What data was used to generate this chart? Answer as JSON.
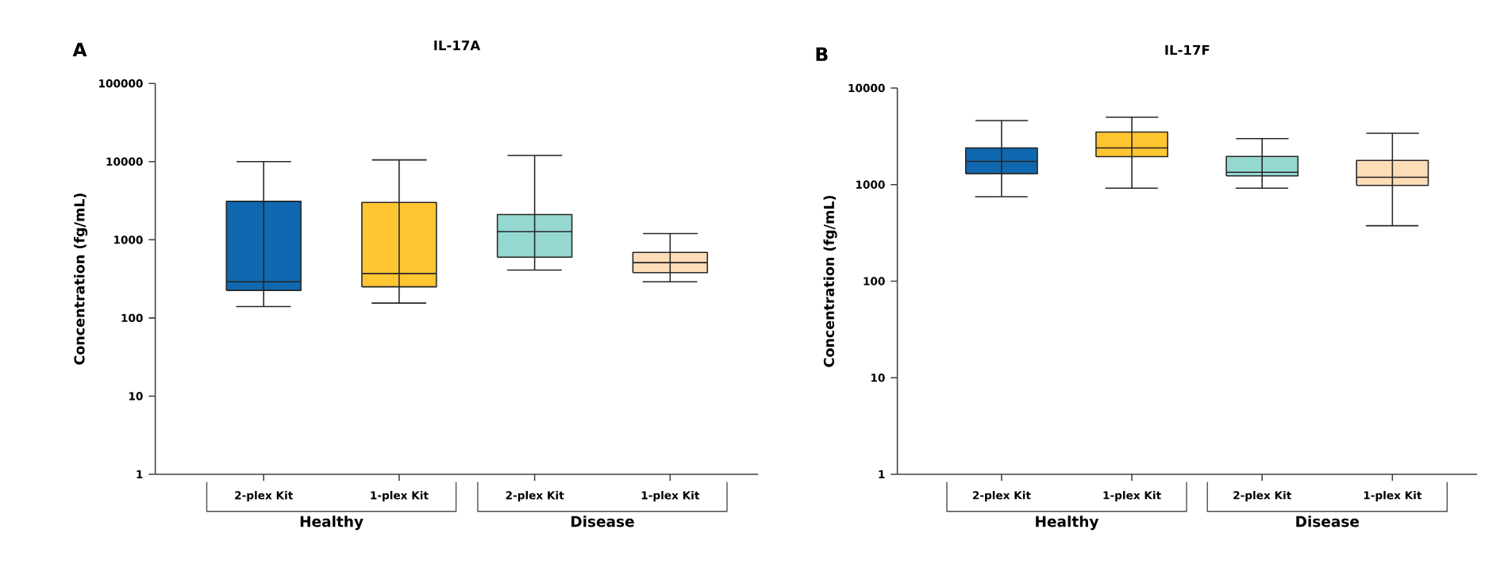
{
  "chart_data": [
    {
      "type": "box",
      "title": "IL-17A",
      "ylabel": "Concentration (fg/mL)",
      "categories": [
        "2-plex Kit",
        "1-plex Kit",
        "2-plex Kit",
        "1-plex Kit"
      ],
      "colors": [
        "#1068b0",
        "#ffc631",
        "#95d8d2",
        "#fddcb8"
      ],
      "log": true,
      "ylim": [
        1,
        100000
      ],
      "yticks": [
        1,
        10,
        100,
        1000,
        10000,
        100000
      ],
      "boxes": [
        {
          "low": 140,
          "q1": 225,
          "median": 290,
          "q3": 3100,
          "high": 10000
        },
        {
          "low": 155,
          "q1": 250,
          "median": 370,
          "q3": 3000,
          "high": 10500
        },
        {
          "low": 410,
          "q1": 600,
          "median": 1270,
          "q3": 2100,
          "high": 12000
        },
        {
          "low": 290,
          "q1": 380,
          "median": 510,
          "q3": 690,
          "high": 1200
        }
      ],
      "annotations": [
        "A",
        "Healthy",
        "Disease"
      ]
    },
    {
      "type": "box",
      "title": "IL-17F",
      "ylabel": "Concentration (fg/mL)",
      "categories": [
        "2-plex Kit",
        "1-plex Kit",
        "2-plex Kit",
        "1-plex Kit"
      ],
      "colors": [
        "#1068b0",
        "#ffc631",
        "#95d8d2",
        "#fddcb8"
      ],
      "log": true,
      "ylim": [
        1,
        10000
      ],
      "yticks": [
        1,
        10,
        100,
        1000,
        10000
      ],
      "boxes": [
        {
          "low": 750,
          "q1": 1300,
          "median": 1740,
          "q3": 2400,
          "high": 4600
        },
        {
          "low": 920,
          "q1": 1950,
          "median": 2400,
          "q3": 3500,
          "high": 5000
        },
        {
          "low": 920,
          "q1": 1230,
          "median": 1340,
          "q3": 1960,
          "high": 3000
        },
        {
          "low": 375,
          "q1": 980,
          "median": 1190,
          "q3": 1780,
          "high": 3400
        }
      ],
      "annotations": [
        "B",
        "Healthy",
        "Disease"
      ]
    }
  ]
}
